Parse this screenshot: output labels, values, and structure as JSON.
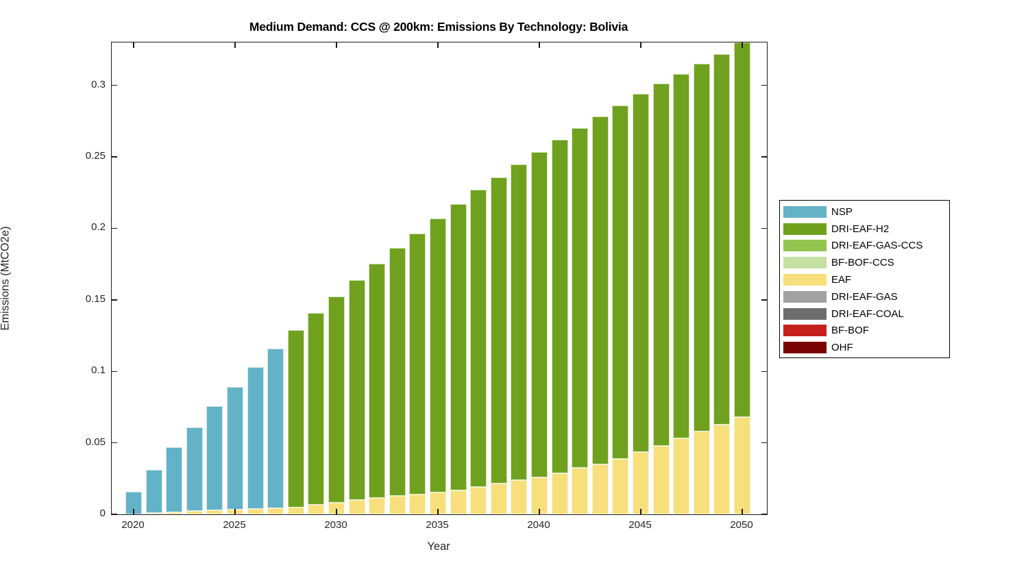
{
  "title": "Medium Demand: CCS @ 200km: Emissions By Technology: Bolivia",
  "chart_data": {
    "type": "bar",
    "stacked": true,
    "title": "Medium Demand: CCS @ 200km: Emissions By Technology: Bolivia",
    "xlabel": "Year",
    "ylabel": "Emissions (MtCO2e)",
    "grid": false,
    "legend_position": "right-outside",
    "ylim": [
      0,
      0.33
    ],
    "y_ticks": [
      0,
      0.05,
      0.1,
      0.15,
      0.2,
      0.25,
      0.3
    ],
    "y_tick_labels": [
      "0",
      "0.05",
      "0.1",
      "0.15",
      "0.2",
      "0.25",
      "0.3"
    ],
    "x_ticks": [
      2020,
      2025,
      2030,
      2035,
      2040,
      2045,
      2050
    ],
    "x_tick_labels": [
      "2020",
      "2025",
      "2030",
      "2035",
      "2040",
      "2045",
      "2050"
    ],
    "categories": [
      2020,
      2021,
      2022,
      2023,
      2024,
      2025,
      2026,
      2027,
      2028,
      2029,
      2030,
      2031,
      2032,
      2033,
      2034,
      2035,
      2036,
      2037,
      2038,
      2039,
      2040,
      2041,
      2042,
      2043,
      2044,
      2045,
      2046,
      2047,
      2048,
      2049,
      2050
    ],
    "series": [
      {
        "name": "NSP",
        "color": "#64B2C7",
        "values": [
          0.016,
          0.03,
          0.0454,
          0.0588,
          0.0728,
          0.0858,
          0.0992,
          0.1116,
          0,
          0,
          0,
          0,
          0,
          0,
          0,
          0,
          0,
          0,
          0,
          0,
          0,
          0,
          0,
          0,
          0,
          0,
          0,
          0,
          0,
          0,
          0
        ]
      },
      {
        "name": "DRI-EAF-H2",
        "color": "#70A11E",
        "values": [
          0,
          0,
          0,
          0,
          0,
          0,
          0,
          0,
          0.124,
          0.1345,
          0.1445,
          0.154,
          0.164,
          0.1735,
          0.1825,
          0.1915,
          0.2,
          0.208,
          0.214,
          0.221,
          0.2275,
          0.233,
          0.2375,
          0.2435,
          0.247,
          0.2505,
          0.2535,
          0.255,
          0.257,
          0.259,
          0.262
        ]
      },
      {
        "name": "DRI-EAF-GAS-CCS",
        "color": "#92C44F",
        "values": [
          0,
          0,
          0,
          0,
          0,
          0,
          0,
          0,
          0,
          0,
          0,
          0,
          0,
          0,
          0,
          0,
          0,
          0,
          0,
          0,
          0,
          0,
          0,
          0,
          0,
          0,
          0,
          0,
          0,
          0,
          0
        ]
      },
      {
        "name": "BF-BOF-CCS",
        "color": "#C5E0A3",
        "values": [
          0,
          0,
          0,
          0,
          0,
          0,
          0,
          0,
          0,
          0,
          0,
          0,
          0,
          0,
          0,
          0,
          0,
          0,
          0,
          0,
          0,
          0,
          0,
          0,
          0,
          0,
          0,
          0,
          0,
          0,
          0
        ]
      },
      {
        "name": "EAF",
        "color": "#F7DF7B",
        "values": [
          0,
          0.001,
          0.0016,
          0.0022,
          0.0027,
          0.0032,
          0.0038,
          0.0044,
          0.005,
          0.0065,
          0.008,
          0.01,
          0.0115,
          0.013,
          0.014,
          0.0155,
          0.017,
          0.019,
          0.0215,
          0.024,
          0.026,
          0.029,
          0.0325,
          0.035,
          0.039,
          0.0435,
          0.048,
          0.053,
          0.058,
          0.063,
          0.068
        ]
      },
      {
        "name": "DRI-EAF-GAS",
        "color": "#A2A2A2",
        "values": [
          0,
          0,
          0,
          0,
          0,
          0,
          0,
          0,
          0,
          0,
          0,
          0,
          0,
          0,
          0,
          0,
          0,
          0,
          0,
          0,
          0,
          0,
          0,
          0,
          0,
          0,
          0,
          0,
          0,
          0,
          0
        ]
      },
      {
        "name": "DRI-EAF-COAL",
        "color": "#6D6D6D",
        "values": [
          0,
          0,
          0,
          0,
          0,
          0,
          0,
          0,
          0,
          0,
          0,
          0,
          0,
          0,
          0,
          0,
          0,
          0,
          0,
          0,
          0,
          0,
          0,
          0,
          0,
          0,
          0,
          0,
          0,
          0,
          0
        ]
      },
      {
        "name": "BF-BOF",
        "color": "#C5211F",
        "values": [
          0,
          0,
          0,
          0,
          0,
          0,
          0,
          0,
          0,
          0,
          0,
          0,
          0,
          0,
          0,
          0,
          0,
          0,
          0,
          0,
          0,
          0,
          0,
          0,
          0,
          0,
          0,
          0,
          0,
          0,
          0
        ]
      },
      {
        "name": "OHF",
        "color": "#7A0403",
        "values": [
          0,
          0,
          0,
          0,
          0,
          0,
          0,
          0,
          0,
          0,
          0,
          0,
          0,
          0,
          0,
          0,
          0,
          0,
          0,
          0,
          0,
          0,
          0,
          0,
          0,
          0,
          0,
          0,
          0,
          0,
          0
        ]
      }
    ]
  }
}
